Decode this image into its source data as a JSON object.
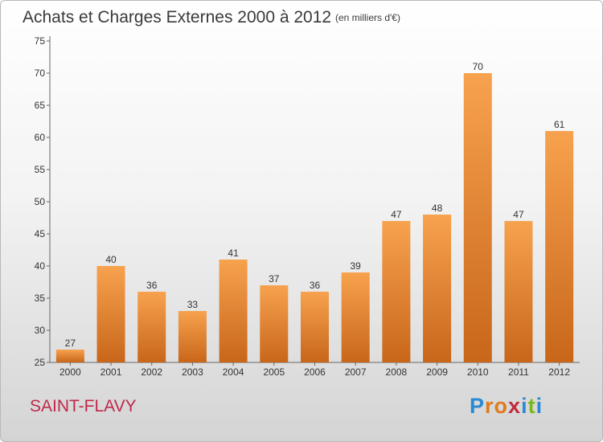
{
  "chart_data": {
    "type": "bar",
    "title": "Achats et Charges Externes 2000 à 2012",
    "subtitle": "(en milliers d'€)",
    "categories": [
      "2000",
      "2001",
      "2002",
      "2003",
      "2004",
      "2005",
      "2006",
      "2007",
      "2008",
      "2009",
      "2010",
      "2011",
      "2012"
    ],
    "values": [
      27,
      40,
      36,
      33,
      41,
      37,
      36,
      39,
      47,
      48,
      70,
      47,
      61
    ],
    "ylim": [
      25,
      75
    ],
    "yticks": [
      25,
      30,
      35,
      40,
      45,
      50,
      55,
      60,
      65,
      70,
      75
    ],
    "xlabel": "",
    "ylabel": "",
    "grid": false,
    "legend": "none",
    "bar_color_top": "#f7a24e",
    "bar_color_bottom": "#c8661a"
  },
  "location": "SAINT-FLAVY",
  "brand": {
    "letters": [
      {
        "ch": "P",
        "color": "#2a8ad4"
      },
      {
        "ch": "r",
        "color": "#e07b1e"
      },
      {
        "ch": "o",
        "color": "#e07b1e"
      },
      {
        "ch": "x",
        "color": "#c02a3c"
      },
      {
        "ch": "i",
        "color": "#2a8ad4"
      },
      {
        "ch": "t",
        "color": "#7bb81c"
      },
      {
        "ch": "i",
        "color": "#2a8ad4"
      }
    ]
  }
}
